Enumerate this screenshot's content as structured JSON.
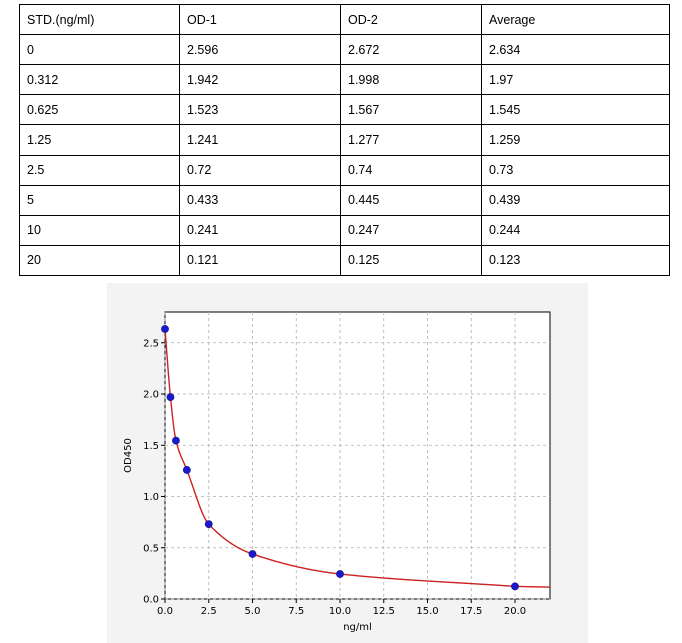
{
  "table": {
    "headers": [
      "STD.(ng/ml)",
      "OD-1",
      "OD-2",
      "Average"
    ],
    "rows": [
      [
        "0",
        "2.596",
        "2.672",
        "2.634"
      ],
      [
        "0.312",
        "1.942",
        "1.998",
        "1.97"
      ],
      [
        "0.625",
        "1.523",
        "1.567",
        "1.545"
      ],
      [
        "1.25",
        "1.241",
        "1.277",
        "1.259"
      ],
      [
        "2.5",
        "0.72",
        "0.74",
        "0.73"
      ],
      [
        "5",
        "0.433",
        "0.445",
        "0.439"
      ],
      [
        "10",
        "0.241",
        "0.247",
        "0.244"
      ],
      [
        "20",
        "0.121",
        "0.125",
        "0.123"
      ]
    ]
  },
  "chart_data": {
    "type": "scatter",
    "title": "",
    "xlabel": "ng/ml",
    "ylabel": "OD450",
    "xlim": [
      0,
      22
    ],
    "ylim": [
      0,
      2.8
    ],
    "xticks": [
      "0.0",
      "2.5",
      "5.0",
      "7.5",
      "10.0",
      "12.5",
      "15.0",
      "17.5",
      "20.0"
    ],
    "yticks": [
      "0.0",
      "0.5",
      "1.0",
      "1.5",
      "2.0",
      "2.5"
    ],
    "grid": true,
    "series": [
      {
        "x": [
          0,
          0.312,
          0.625,
          1.25,
          2.5,
          5,
          10,
          20
        ],
        "y": [
          2.634,
          1.97,
          1.545,
          1.259,
          0.73,
          0.439,
          0.244,
          0.123
        ],
        "marker_color": "#1a1acc",
        "fit_line_color": "#cc2222"
      }
    ]
  }
}
